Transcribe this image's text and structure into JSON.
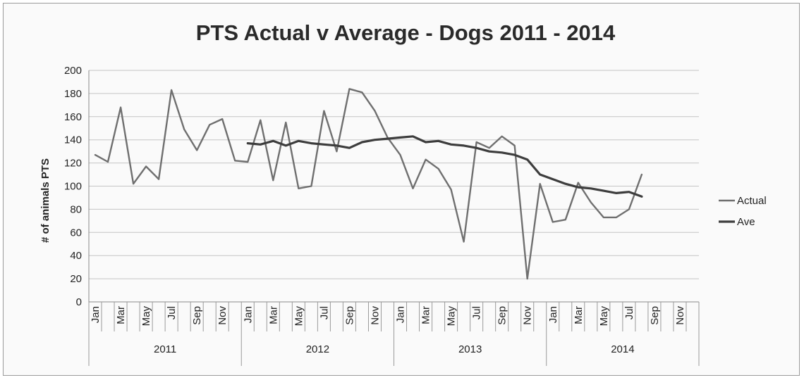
{
  "chart_data": {
    "type": "line",
    "title": "PTS Actual v Average - Dogs 2011 - 2014",
    "ylabel": "# of animals PTS",
    "xlabel": "",
    "ylim": [
      0,
      200
    ],
    "yticks": [
      "0",
      "20",
      "40",
      "60",
      "80",
      "100",
      "120",
      "140",
      "160",
      "180",
      "200"
    ],
    "grid": "horizontal",
    "legend_position": "right",
    "month_labels": [
      "Jan",
      "Mar",
      "May",
      "Jul",
      "Sep",
      "Nov"
    ],
    "years": [
      "2011",
      "2012",
      "2013",
      "2014"
    ],
    "series": [
      {
        "name": "Actual",
        "color": "#6f6f6f",
        "values": [
          127,
          121,
          168,
          102,
          117,
          106,
          183,
          149,
          131,
          153,
          158,
          122,
          121,
          157,
          105,
          155,
          98,
          100,
          165,
          130,
          184,
          181,
          165,
          142,
          127,
          98,
          123,
          115,
          97,
          52,
          138,
          133,
          143,
          135,
          20,
          102,
          69,
          71,
          103,
          86,
          73,
          73,
          80,
          110
        ]
      },
      {
        "name": "Ave",
        "color": "#3d3d3d",
        "values": [
          null,
          null,
          null,
          null,
          null,
          null,
          null,
          null,
          null,
          null,
          null,
          null,
          137,
          136,
          139,
          135,
          139,
          137,
          136,
          135,
          133,
          138,
          140,
          141,
          142,
          143,
          138,
          139,
          136,
          135,
          133,
          130,
          129,
          127,
          123,
          110,
          106,
          102,
          99,
          98,
          96,
          94,
          95,
          91
        ]
      }
    ]
  }
}
